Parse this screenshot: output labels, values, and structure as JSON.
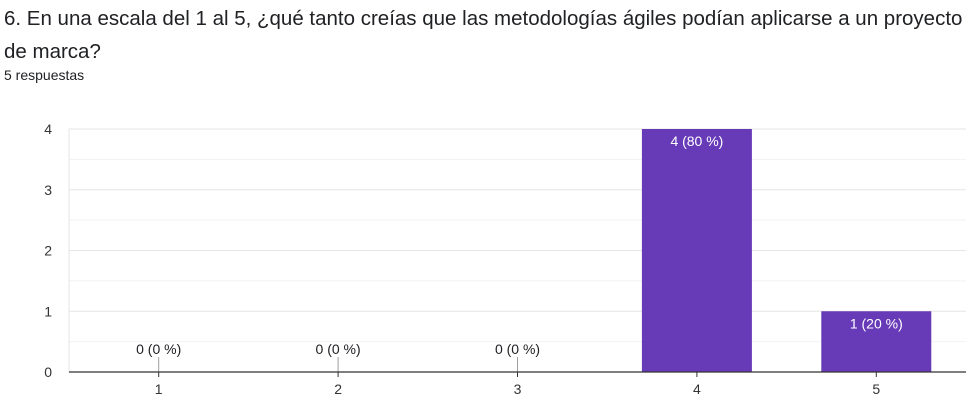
{
  "question": {
    "title": "6. En una escala del 1 al 5, ¿qué tanto creías que las metodologías ágiles podían aplicarse a un proyecto de marca?",
    "response_count": "5 respuestas"
  },
  "colors": {
    "bar": "#673ab7",
    "grid_major": "#e6e6e6",
    "grid_minor": "#f2f2f2",
    "axis": "#333333",
    "label_inside": "#ffffff",
    "label_outside": "#202124"
  },
  "chart_data": {
    "type": "bar",
    "title": "",
    "xlabel": "",
    "ylabel": "",
    "categories": [
      "1",
      "2",
      "3",
      "4",
      "5"
    ],
    "values": [
      0,
      0,
      0,
      4,
      1
    ],
    "data_labels": [
      "0 (0 %)",
      "0 (0 %)",
      "0 (0 %)",
      "4 (80 %)",
      "1 (20 %)"
    ],
    "y_ticks": [
      0,
      1,
      2,
      3,
      4
    ],
    "ylim": [
      0,
      4
    ],
    "grid": true,
    "legend": "none"
  }
}
